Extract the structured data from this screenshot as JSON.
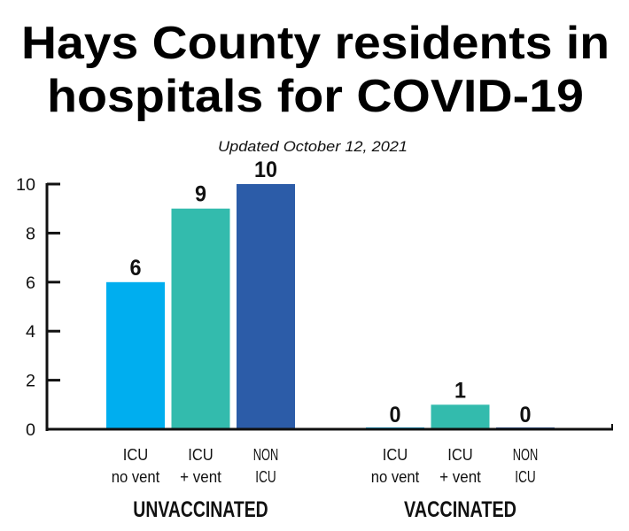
{
  "chart_data": {
    "type": "bar",
    "title": "Hays County residents in hospitals for COVID-19",
    "title_lines": [
      "Hays County residents in",
      "hospitals for COVID-19"
    ],
    "subtitle": "Updated October 12, 2021",
    "xlabel": "",
    "ylabel": "",
    "ylim": [
      0,
      10
    ],
    "yticks": [
      0,
      2,
      4,
      6,
      8,
      10
    ],
    "grid": false,
    "groups": [
      {
        "name": "UNVACCINATED",
        "categories": [
          {
            "line1": "ICU",
            "line2": "no vent",
            "value": 6,
            "color": "#00aeef"
          },
          {
            "line1": "ICU",
            "line2": "+ vent",
            "value": 9,
            "color": "#33bbad"
          },
          {
            "line1": "NON",
            "line2": "ICU",
            "value": 10,
            "color": "#2c5ca8"
          }
        ]
      },
      {
        "name": "VACCINATED",
        "categories": [
          {
            "line1": "ICU",
            "line2": "no vent",
            "value": 0,
            "color": "#00aeef"
          },
          {
            "line1": "ICU",
            "line2": "+ vent",
            "value": 1,
            "color": "#33bbad"
          },
          {
            "line1": "NON",
            "line2": "ICU",
            "value": 0,
            "color": "#2c5ca8"
          }
        ]
      }
    ]
  }
}
